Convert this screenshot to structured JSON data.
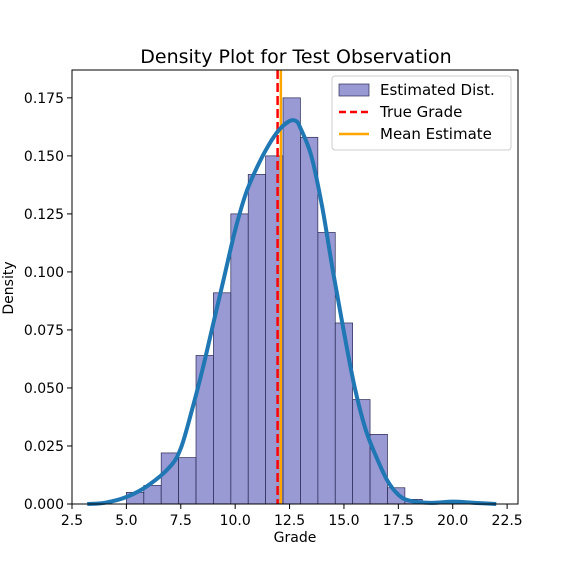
{
  "chart_data": {
    "type": "bar",
    "title": "Density Plot for Test Observation",
    "xlabel": "Grade",
    "ylabel": "Density",
    "xlim": [
      2.5,
      23.0
    ],
    "ylim": [
      0.0,
      0.187
    ],
    "x_ticks": [
      2.5,
      5.0,
      7.5,
      10.0,
      12.5,
      15.0,
      17.5,
      20.0,
      22.5
    ],
    "x_tick_labels": [
      "2.5",
      "5.0",
      "7.5",
      "10.0",
      "12.5",
      "15.0",
      "17.5",
      "20.0",
      "22.5"
    ],
    "y_ticks": [
      0.0,
      0.025,
      0.05,
      0.075,
      0.1,
      0.125,
      0.15,
      0.175
    ],
    "y_tick_labels": [
      "0.000",
      "0.025",
      "0.050",
      "0.075",
      "0.100",
      "0.125",
      "0.150",
      "0.175"
    ],
    "grid": false,
    "legend_position": "top-right",
    "series": [
      {
        "name": "Estimated Dist.",
        "kind": "histogram",
        "color": "#7777c4",
        "bin_edges": [
          5.0,
          5.8,
          6.6,
          7.4,
          8.2,
          9.0,
          9.8,
          10.6,
          11.4,
          12.2,
          13.0,
          13.8,
          14.6,
          15.4,
          16.2,
          17.0,
          17.8,
          18.6,
          19.4
        ],
        "densities": [
          0.005,
          0.008,
          0.022,
          0.02,
          0.064,
          0.091,
          0.125,
          0.142,
          0.15,
          0.175,
          0.158,
          0.117,
          0.078,
          0.045,
          0.03,
          0.007,
          0.002,
          0.001
        ]
      },
      {
        "name": "True Grade",
        "kind": "vline",
        "x": 11.95,
        "color": "#ff0000",
        "style": "dashed"
      },
      {
        "name": "Mean Estimate",
        "kind": "vline",
        "x": 12.1,
        "color": "#ffa500",
        "style": "solid"
      },
      {
        "name": "",
        "kind": "kde",
        "color": "#1f77b4",
        "x": [
          3.2,
          4.0,
          5.0,
          6.0,
          7.0,
          7.5,
          8.0,
          8.5,
          9.0,
          9.5,
          10.0,
          10.5,
          11.0,
          11.5,
          12.0,
          12.5,
          12.8,
          13.0,
          13.5,
          14.0,
          14.5,
          15.0,
          15.5,
          16.0,
          16.5,
          17.0,
          17.5,
          18.0,
          19.0,
          20.0,
          21.0,
          22.0
        ],
        "y": [
          0.0,
          0.0005,
          0.003,
          0.008,
          0.016,
          0.024,
          0.04,
          0.058,
          0.078,
          0.098,
          0.118,
          0.134,
          0.145,
          0.154,
          0.161,
          0.165,
          0.165,
          0.162,
          0.15,
          0.128,
          0.1,
          0.074,
          0.05,
          0.032,
          0.02,
          0.01,
          0.004,
          0.0015,
          0.0005,
          0.001,
          0.0005,
          0.0
        ]
      }
    ]
  }
}
